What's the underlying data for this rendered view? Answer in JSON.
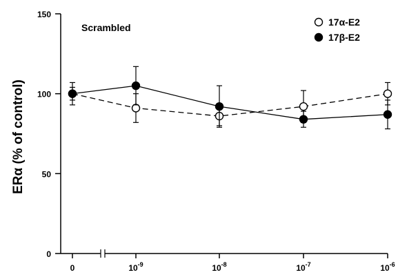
{
  "chart_data": {
    "type": "line",
    "annotation": "Scrambled",
    "ylabel": "ERα (% of control)",
    "xlabel": "",
    "ylim": [
      0,
      150
    ],
    "yticks": [
      0,
      50,
      100,
      150
    ],
    "categories": [
      {
        "base": "0",
        "exp": ""
      },
      {
        "base": "10",
        "exp": "-9"
      },
      {
        "base": "10",
        "exp": "-8"
      },
      {
        "base": "10",
        "exp": "-7"
      },
      {
        "base": "10",
        "exp": "-6"
      }
    ],
    "axis_break_after_first": true,
    "legend": {
      "position": "top-right"
    },
    "series": [
      {
        "name": "17α-E2",
        "marker": "open-circle",
        "line": "dashed",
        "values": [
          100,
          91,
          86,
          92,
          100
        ],
        "errors": [
          7,
          9,
          6,
          10,
          7
        ]
      },
      {
        "name": "17β-E2",
        "marker": "filled-circle",
        "line": "solid",
        "values": [
          100,
          105,
          92,
          84,
          87
        ],
        "errors": [
          4,
          12,
          13,
          5,
          9
        ]
      }
    ]
  }
}
